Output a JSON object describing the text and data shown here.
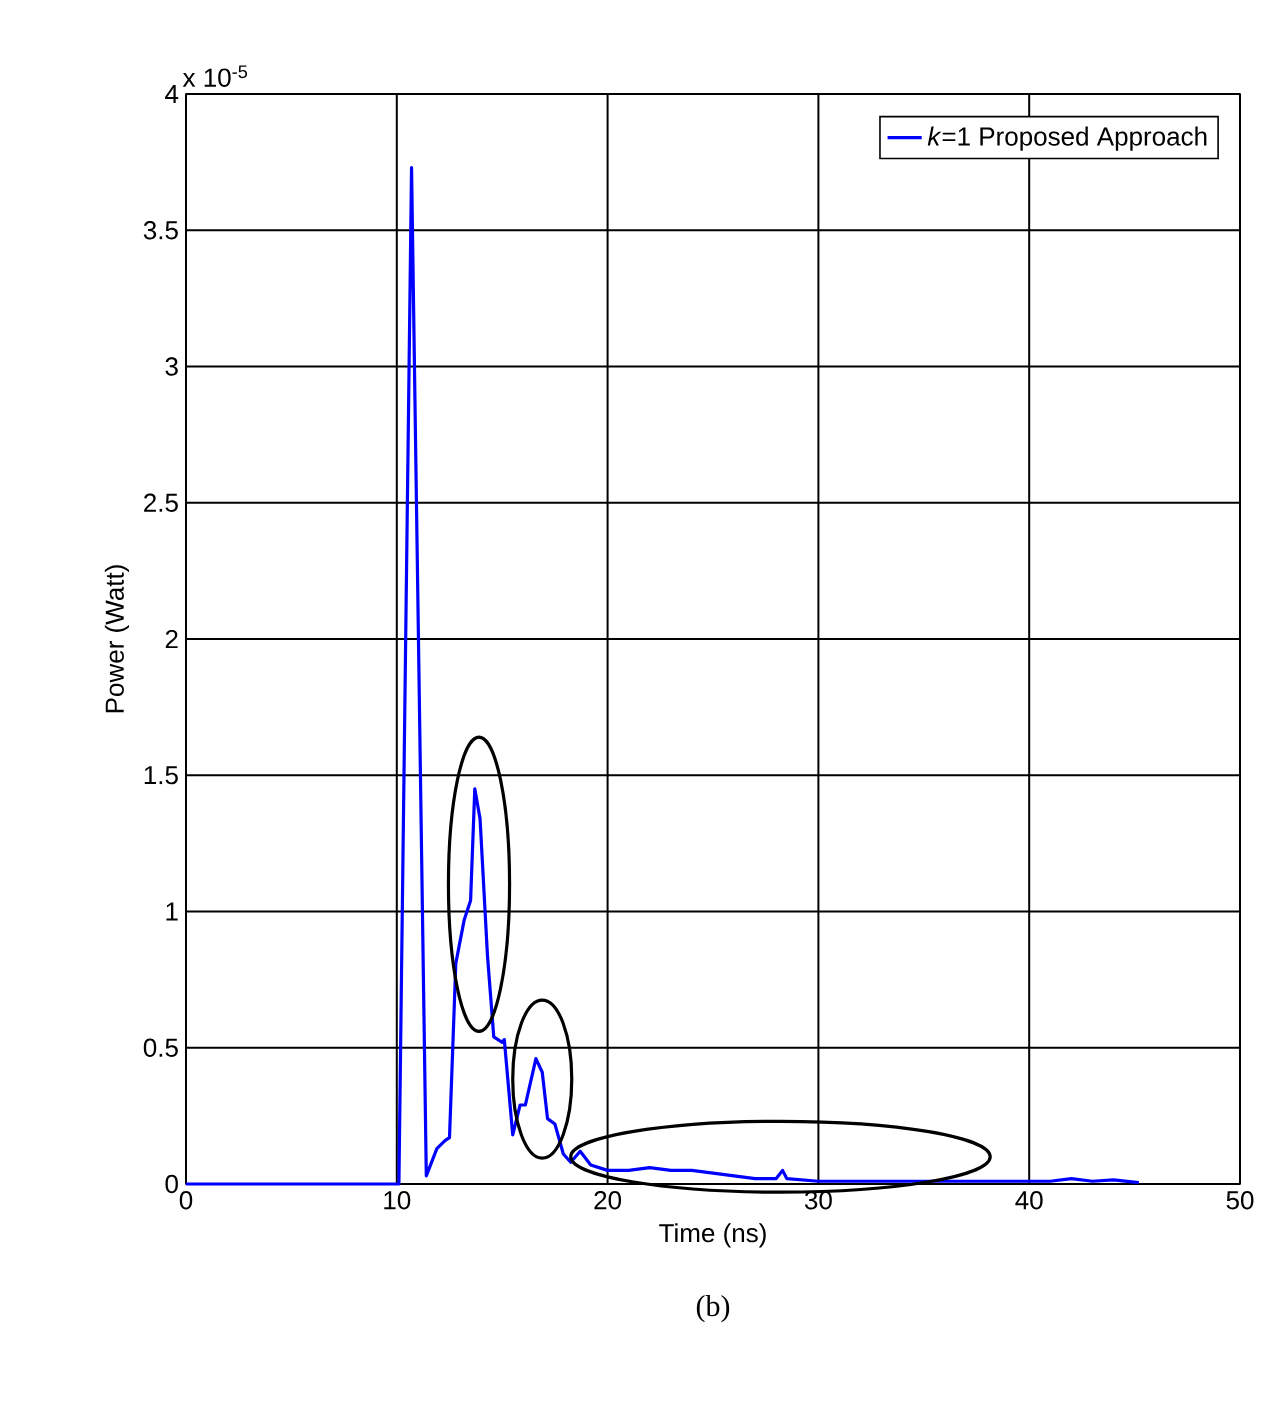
{
  "chart_data": {
    "type": "line",
    "xlabel": "Time (ns)",
    "ylabel": "Power (Watt)",
    "annotations": [
      "x 10$^{-5}$",
      "(b)"
    ],
    "xlim": [
      0,
      50
    ],
    "xticks": [
      0,
      10,
      20,
      30,
      40,
      50
    ],
    "ylim": [
      0,
      4
    ],
    "yticks": [
      0,
      0.5,
      1,
      1.5,
      2,
      2.5,
      3,
      3.5,
      4
    ],
    "grid": true,
    "legend": "top right",
    "series": [
      {
        "name": "*k*=1 Proposed Approach",
        "color": "#0000ff",
        "x": [
          0,
          10.1,
          10.7,
          11.4,
          11.9,
          12.3,
          12.5,
          12.8,
          13.2,
          13.5,
          13.7,
          13.95,
          14.3,
          14.6,
          15.0,
          15.1,
          15.5,
          15.85,
          16.1,
          16.6,
          16.9,
          17.15,
          17.5,
          17.9,
          18.25,
          18.7,
          19.2,
          20,
          21,
          22,
          23,
          24,
          25,
          26,
          27,
          28,
          28.3,
          28.5,
          30,
          32,
          35,
          38,
          40,
          41,
          42,
          43,
          44,
          45.2
        ],
        "values": [
          0,
          0,
          3.73,
          0.03,
          0.13,
          0.16,
          0.17,
          0.81,
          0.97,
          1.04,
          1.45,
          1.34,
          0.84,
          0.54,
          0.52,
          0.53,
          0.18,
          0.29,
          0.29,
          0.46,
          0.41,
          0.24,
          0.22,
          0.11,
          0.08,
          0.12,
          0.07,
          0.05,
          0.05,
          0.06,
          0.05,
          0.05,
          0.04,
          0.03,
          0.02,
          0.02,
          0.05,
          0.02,
          0.01,
          0.01,
          0.01,
          0.01,
          0.01,
          0.01,
          0.02,
          0.01,
          0.015,
          0.005
        ]
      }
    ]
  }
}
